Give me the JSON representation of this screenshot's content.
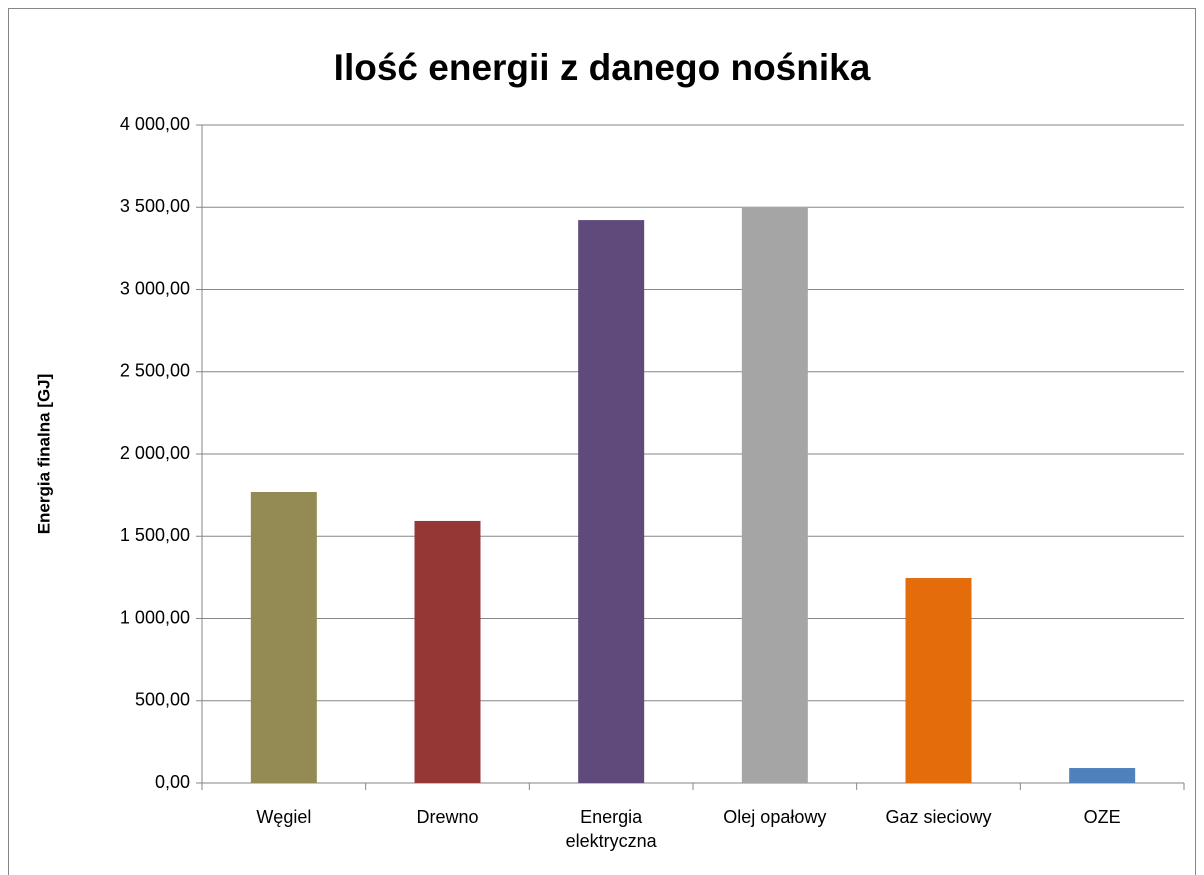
{
  "chart_data": {
    "type": "bar",
    "title": "Ilość energii z danego nośnika",
    "y_label": "Energia finalna [GJ]",
    "categories": [
      "Węgiel",
      "Drewno",
      "Energia elektryczna",
      "Olej opałowy",
      "Gaz sieciowy",
      "OZE"
    ],
    "values": [
      1769,
      1593,
      3422,
      3502,
      1246,
      91
    ],
    "colors": [
      "#948a54",
      "#953735",
      "#604a7b",
      "#a5a5a5",
      "#e46c0a",
      "#4f81bd"
    ],
    "ylim": [
      0,
      4000
    ],
    "yticks": [
      {
        "value": 0,
        "label": "0,00"
      },
      {
        "value": 500,
        "label": "500,00"
      },
      {
        "value": 1000,
        "label": "1 000,00"
      },
      {
        "value": 1500,
        "label": "1 500,00"
      },
      {
        "value": 2000,
        "label": "2 000,00"
      },
      {
        "value": 2500,
        "label": "2 500,00"
      },
      {
        "value": 3000,
        "label": "3 000,00"
      },
      {
        "value": 3500,
        "label": "3 500,00"
      },
      {
        "value": 4000,
        "label": "4 000,00"
      }
    ],
    "grid": true
  }
}
